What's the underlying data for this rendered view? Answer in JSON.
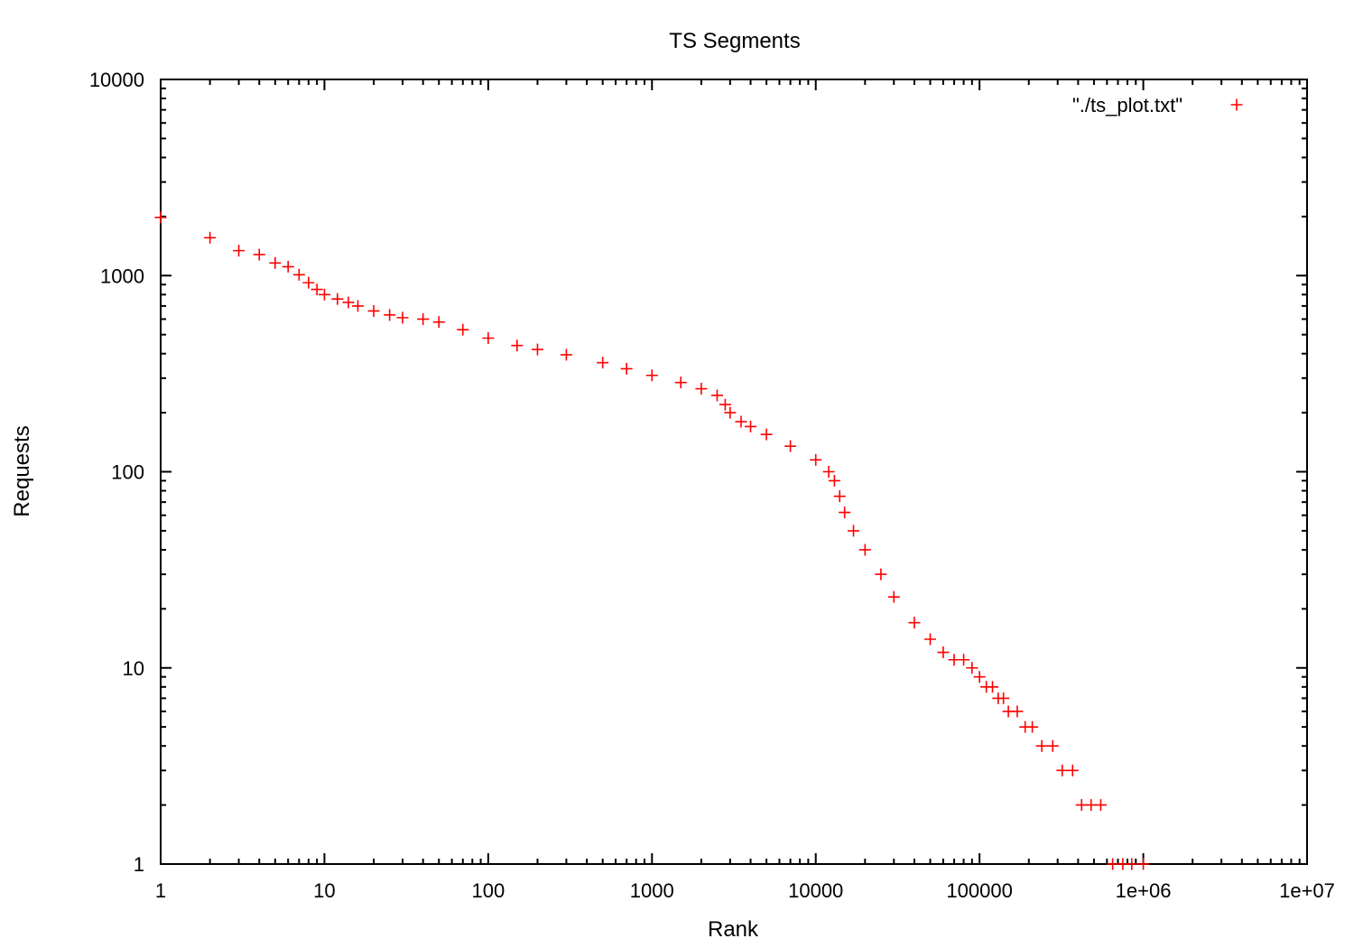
{
  "chart_data": {
    "type": "scatter",
    "title": "TS Segments",
    "xlabel": "Rank",
    "ylabel": "Requests",
    "xscale": "log",
    "yscale": "log",
    "xlim": [
      1,
      10000000
    ],
    "ylim": [
      1,
      10000
    ],
    "x_tick_labels": [
      "1",
      "10",
      "100",
      "1000",
      "10000",
      "100000",
      "1e+06",
      "1e+07"
    ],
    "y_tick_labels": [
      "1",
      "10",
      "100",
      "1000",
      "10000"
    ],
    "grid": false,
    "legend_position": "top-right",
    "marker": "plus",
    "color": "#ff0000",
    "series": [
      {
        "name": "\"./ts_plot.txt\"",
        "x": [
          1,
          2,
          3,
          4,
          5,
          6,
          7,
          8,
          9,
          10,
          12,
          14,
          16,
          20,
          25,
          30,
          40,
          50,
          70,
          100,
          150,
          200,
          300,
          500,
          700,
          1000,
          1500,
          2000,
          2500,
          2800,
          3000,
          3500,
          4000,
          5000,
          7000,
          10000,
          12000,
          13000,
          14000,
          15000,
          17000,
          20000,
          25000,
          30000,
          40000,
          50000,
          60000,
          70000,
          80000,
          90000,
          100000,
          110000,
          120000,
          130000,
          140000,
          150000,
          170000,
          190000,
          210000,
          240000,
          280000,
          320000,
          370000,
          420000,
          480000,
          550000,
          650000,
          750000,
          850000,
          1000000
        ],
        "y": [
          1980,
          1560,
          1340,
          1280,
          1160,
          1110,
          1010,
          920,
          850,
          800,
          760,
          730,
          700,
          660,
          630,
          610,
          600,
          580,
          530,
          480,
          440,
          420,
          395,
          360,
          335,
          310,
          285,
          265,
          245,
          220,
          200,
          180,
          170,
          155,
          135,
          115,
          100,
          90,
          75,
          62,
          50,
          40,
          30,
          23,
          17,
          14,
          12,
          11,
          11,
          10,
          9,
          8,
          8,
          7,
          7,
          6,
          6,
          5,
          5,
          4,
          4,
          3,
          3,
          2,
          2,
          2,
          1,
          1,
          1,
          1
        ]
      }
    ]
  }
}
